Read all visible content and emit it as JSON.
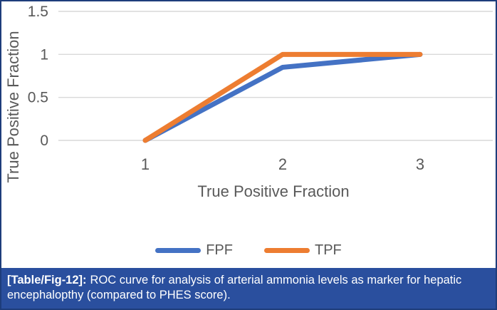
{
  "frame": {
    "border_color": "#1e3d7b",
    "background": "#ffffff"
  },
  "chart_data": {
    "type": "line",
    "title": "",
    "categories": [
      "1",
      "2",
      "3"
    ],
    "series": [
      {
        "name": "FPF",
        "color": "#4472C4",
        "values": [
          0,
          0.85,
          1
        ]
      },
      {
        "name": "TPF",
        "color": "#ED7D31",
        "values": [
          0,
          1,
          1
        ]
      }
    ],
    "xlabel": "True Positive Fraction",
    "ylabel": "True Positive Fraction",
    "yticks": [
      0,
      0.5,
      1,
      1.5
    ],
    "ylim": [
      0,
      1.5
    ],
    "grid": true,
    "gridline_color": "#d9d9d9",
    "tick_color": "#595959",
    "axis_title_color": "#595959",
    "legend_position": "bottom"
  },
  "caption": {
    "prefix": "[Table/Fig-12]:",
    "text": "ROC curve for analysis of arterial ammonia levels as marker for hepatic encephalopthy (compared to PHES score).",
    "background": "#2a4f9e",
    "text_color": "#ffffff"
  }
}
